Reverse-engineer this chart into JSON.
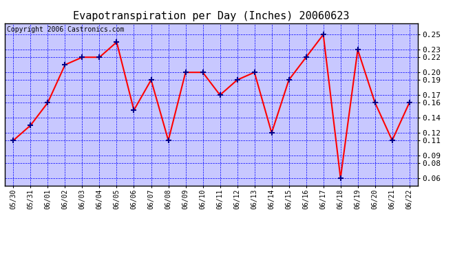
{
  "title": "Evapotranspiration per Day (Inches) 20060623",
  "copyright": "Copyright 2006 Castronics.com",
  "dates": [
    "05/30",
    "05/31",
    "06/01",
    "06/02",
    "06/03",
    "06/04",
    "06/05",
    "06/06",
    "06/07",
    "06/08",
    "06/09",
    "06/10",
    "06/11",
    "06/12",
    "06/13",
    "06/14",
    "06/15",
    "06/16",
    "06/17",
    "06/18",
    "06/19",
    "06/20",
    "06/21",
    "06/22"
  ],
  "values": [
    0.11,
    0.13,
    0.16,
    0.21,
    0.22,
    0.22,
    0.24,
    0.15,
    0.19,
    0.11,
    0.2,
    0.2,
    0.17,
    0.19,
    0.2,
    0.12,
    0.19,
    0.22,
    0.25,
    0.06,
    0.23,
    0.16,
    0.11,
    0.16
  ],
  "line_color": "red",
  "marker_color": "darkblue",
  "background_color": "#c8c8ff",
  "grid_color": "blue",
  "ylim_min": 0.05,
  "ylim_max": 0.265,
  "yticks": [
    0.06,
    0.08,
    0.09,
    0.11,
    0.12,
    0.14,
    0.16,
    0.17,
    0.19,
    0.2,
    0.22,
    0.23,
    0.25
  ]
}
